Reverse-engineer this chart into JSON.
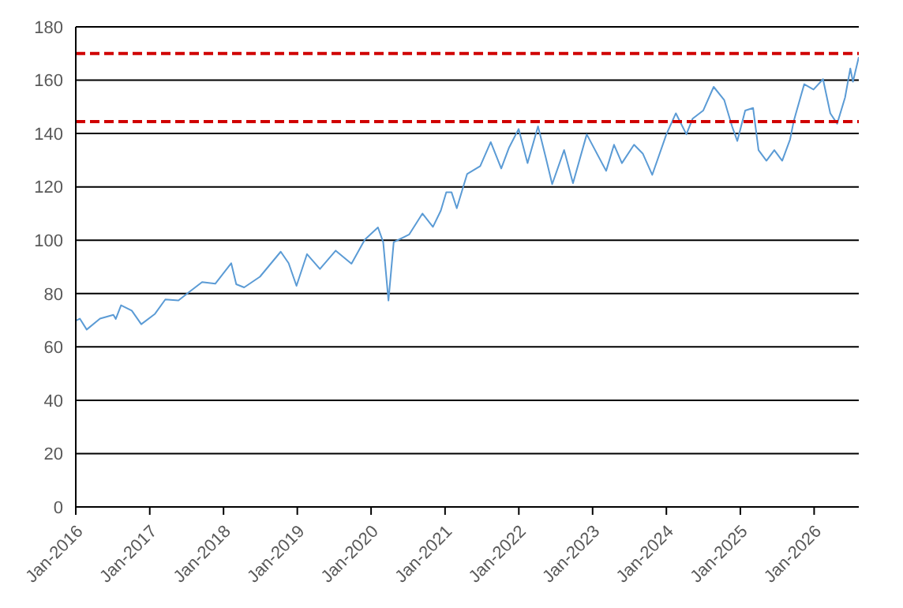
{
  "chart_data": {
    "type": "line",
    "x": [
      "2016-01-01",
      "2016-01-21",
      "2016-02-24",
      "2016-04-30",
      "2016-07-05",
      "2016-07-17",
      "2016-08-12",
      "2016-10-04",
      "2016-11-20",
      "2017-01-27",
      "2017-03-19",
      "2017-05-23",
      "2017-07-14",
      "2017-09-17",
      "2017-11-21",
      "2018-02-08",
      "2018-03-05",
      "2018-04-13",
      "2018-06-30",
      "2018-10-11",
      "2018-11-19",
      "2018-12-28",
      "2019-02-18",
      "2019-04-23",
      "2019-07-10",
      "2019-09-26",
      "2019-12-01",
      "2020-02-04",
      "2020-03-01",
      "2020-03-27",
      "2020-04-22",
      "2020-07-08",
      "2020-09-11",
      "2020-11-02",
      "2020-12-11",
      "2021-01-07",
      "2021-02-02",
      "2021-02-28",
      "2021-04-20",
      "2021-06-24",
      "2021-08-15",
      "2021-10-06",
      "2021-11-14",
      "2021-12-31",
      "2022-02-13",
      "2022-04-06",
      "2022-05-15",
      "2022-06-15",
      "2022-08-13",
      "2022-09-26",
      "2022-12-03",
      "2023-03-09",
      "2023-04-17",
      "2023-05-26",
      "2023-07-25",
      "2023-09-07",
      "2023-10-23",
      "2024-01-01",
      "2024-02-17",
      "2024-04-09",
      "2024-05-10",
      "2024-07-01",
      "2024-08-22",
      "2024-10-13",
      "2024-11-21",
      "2024-12-17",
      "2025-01-25",
      "2025-03-05",
      "2025-04-01",
      "2025-05-10",
      "2025-06-18",
      "2025-07-27",
      "2025-09-04",
      "2025-09-22",
      "2025-11-13",
      "2025-12-29",
      "2026-02-14",
      "2026-03-22",
      "2026-04-25",
      "2026-06-03",
      "2026-06-29",
      "2026-07-12",
      "2026-08-10"
    ],
    "series": [
      {
        "color": "#5b9bd5",
        "values": [
          69.8,
          70.6,
          66.5,
          70.6,
          72,
          70.5,
          75.6,
          73.6,
          68.5,
          72.4,
          77.8,
          77.4,
          80.5,
          84.3,
          83.7,
          91.4,
          83.5,
          82.3,
          86.3,
          95.7,
          91.4,
          82.9,
          94.8,
          89.2,
          96.1,
          91.2,
          100.2,
          104.8,
          99.3,
          77.4,
          99.3,
          102.2,
          110,
          105,
          111.1,
          118,
          118,
          112,
          124.8,
          127.8,
          136.8,
          126.9,
          134.8,
          141.7,
          128.9,
          142.7,
          130.8,
          121,
          133.8,
          121.4,
          139.7,
          126,
          135.8,
          128.9,
          135.8,
          132.4,
          124.5,
          139.7,
          147.6,
          139.7,
          145.6,
          148.6,
          157.5,
          152.6,
          142.7,
          137.2,
          148.6,
          149.6,
          133.8,
          129.8,
          133.8,
          129.8,
          137.8,
          144.6,
          158.5,
          156.5,
          160.4,
          147.6,
          143.7,
          153.5,
          164.4,
          159.4,
          168.7
        ]
      }
    ],
    "xlim": [
      "2016-01-01",
      "2026-08-10"
    ],
    "xticks": [
      {
        "value": "2016-01-01",
        "label": "Jan-2016"
      },
      {
        "value": "2017-01-01",
        "label": "Jan-2017"
      },
      {
        "value": "2018-01-01",
        "label": "Jan-2018"
      },
      {
        "value": "2019-01-01",
        "label": "Jan-2019"
      },
      {
        "value": "2020-01-01",
        "label": "Jan-2020"
      },
      {
        "value": "2021-01-01",
        "label": "Jan-2021"
      },
      {
        "value": "2022-01-01",
        "label": "Jan-2022"
      },
      {
        "value": "2023-01-01",
        "label": "Jan-2023"
      },
      {
        "value": "2024-01-01",
        "label": "Jan-2024"
      },
      {
        "value": "2025-01-01",
        "label": "Jan-2025"
      },
      {
        "value": "2026-01-01",
        "label": "Jan-2026"
      }
    ],
    "ylim": [
      0,
      180
    ],
    "yticks": [
      0,
      20,
      40,
      60,
      80,
      100,
      120,
      140,
      160,
      180
    ],
    "grid": "y",
    "marker": "none",
    "line_style": "solid",
    "ref_lines": [
      {
        "axis": "y",
        "value": 170,
        "color": "#d00000",
        "line_style": "dashed"
      },
      {
        "axis": "y",
        "value": 144.5,
        "color": "#d00000",
        "line_style": "dashed"
      }
    ]
  }
}
